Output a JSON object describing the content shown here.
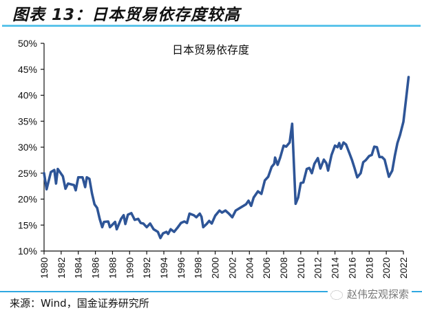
{
  "figure": {
    "title_prefix": "图表",
    "title_number": "13",
    "title_text": "：日本贸易依存度较高",
    "source": "来源：Wind，国金证券研究所",
    "watermark": "赵伟宏观探索",
    "accent_color": "#5bc4ea",
    "line_color": "#2e5597"
  },
  "chart_data": {
    "type": "line",
    "title": "日本贸易依存度",
    "xlabel": "",
    "ylabel": "",
    "ylim": [
      0.1,
      0.5
    ],
    "xlim": [
      1980,
      2022
    ],
    "yticks": [
      "10%",
      "15%",
      "20%",
      "25%",
      "30%",
      "35%",
      "40%",
      "45%",
      "50%"
    ],
    "xticks": [
      "1980",
      "1982",
      "1984",
      "1986",
      "1988",
      "1990",
      "1992",
      "1994",
      "1996",
      "1998",
      "2000",
      "2002",
      "2004",
      "2006",
      "2008",
      "2010",
      "2012",
      "2014",
      "2016",
      "2018",
      "2020",
      "2022"
    ],
    "grid": false,
    "legend": null,
    "series": [
      {
        "name": "日本贸易依存度",
        "color": "#2e5597",
        "x": [
          1980.0,
          1980.3,
          1980.8,
          1981.2,
          1981.4,
          1981.6,
          1982.2,
          1982.5,
          1982.8,
          1983.5,
          1983.7,
          1984.0,
          1984.5,
          1984.8,
          1985.0,
          1985.3,
          1985.6,
          1985.9,
          1986.2,
          1986.5,
          1986.8,
          1987.0,
          1987.5,
          1987.7,
          1988.3,
          1988.5,
          1989.0,
          1989.3,
          1989.5,
          1989.8,
          1990.2,
          1990.6,
          1991.0,
          1991.3,
          1991.6,
          1992.0,
          1992.4,
          1992.8,
          1993.3,
          1993.6,
          1993.9,
          1994.3,
          1994.5,
          1994.8,
          1995.2,
          1995.6,
          1996.0,
          1996.4,
          1996.7,
          1997.0,
          1997.5,
          1997.8,
          1998.2,
          1998.4,
          1998.6,
          1999.0,
          1999.3,
          1999.6,
          2000.0,
          2000.5,
          2000.8,
          2001.2,
          2001.6,
          2002.0,
          2002.4,
          2002.9,
          2003.3,
          2003.6,
          2003.9,
          2004.2,
          2004.5,
          2005.0,
          2005.4,
          2005.8,
          2006.2,
          2006.6,
          2006.9,
          2007.0,
          2007.3,
          2007.6,
          2008.0,
          2008.3,
          2008.7,
          2009.0,
          2009.4,
          2009.7,
          2010.0,
          2010.3,
          2010.7,
          2011.0,
          2011.3,
          2011.6,
          2012.0,
          2012.3,
          2012.7,
          2013.0,
          2013.2,
          2013.6,
          2014.0,
          2014.3,
          2014.5,
          2014.7,
          2015.0,
          2015.3,
          2015.7,
          2016.0,
          2016.3,
          2016.6,
          2017.0,
          2017.3,
          2017.6,
          2018.0,
          2018.3,
          2018.6,
          2018.9,
          2019.2,
          2019.5,
          2019.8,
          2020.3,
          2020.7,
          2021.0,
          2021.3,
          2021.6,
          2022.0,
          2022.3,
          2022.6
        ],
        "values": [
          25.0,
          21.9,
          25.2,
          25.6,
          23.0,
          25.8,
          24.4,
          22.0,
          23.0,
          22.7,
          21.7,
          24.2,
          24.2,
          22.3,
          24.2,
          23.9,
          21.1,
          19.0,
          18.3,
          16.2,
          14.6,
          15.6,
          15.7,
          14.6,
          15.6,
          14.2,
          16.2,
          16.9,
          15.2,
          17.0,
          17.3,
          16.0,
          16.2,
          15.4,
          15.3,
          14.6,
          15.3,
          14.2,
          13.7,
          12.5,
          13.4,
          13.7,
          13.3,
          14.2,
          13.7,
          14.5,
          15.4,
          15.7,
          15.4,
          17.2,
          16.9,
          16.5,
          17.2,
          16.6,
          14.6,
          15.2,
          15.8,
          15.3,
          16.8,
          17.8,
          17.4,
          17.8,
          17.2,
          16.5,
          17.8,
          18.3,
          18.7,
          19.0,
          19.7,
          18.7,
          20.3,
          21.5,
          21.0,
          23.6,
          24.3,
          26.2,
          26.8,
          28.0,
          26.6,
          28.0,
          30.3,
          30.1,
          30.9,
          34.5,
          19.1,
          20.3,
          23.1,
          23.2,
          25.8,
          26.0,
          25.0,
          26.8,
          27.9,
          25.9,
          27.6,
          26.9,
          25.5,
          28.5,
          30.3,
          30.0,
          30.8,
          29.7,
          30.9,
          30.5,
          28.8,
          27.5,
          25.9,
          24.2,
          25.0,
          27.1,
          27.5,
          28.3,
          28.5,
          30.1,
          30.0,
          28.1,
          28.1,
          27.6,
          24.3,
          25.5,
          28.4,
          30.8,
          32.3,
          34.9,
          39.1,
          43.5
        ],
        "unit": "%"
      }
    ]
  }
}
